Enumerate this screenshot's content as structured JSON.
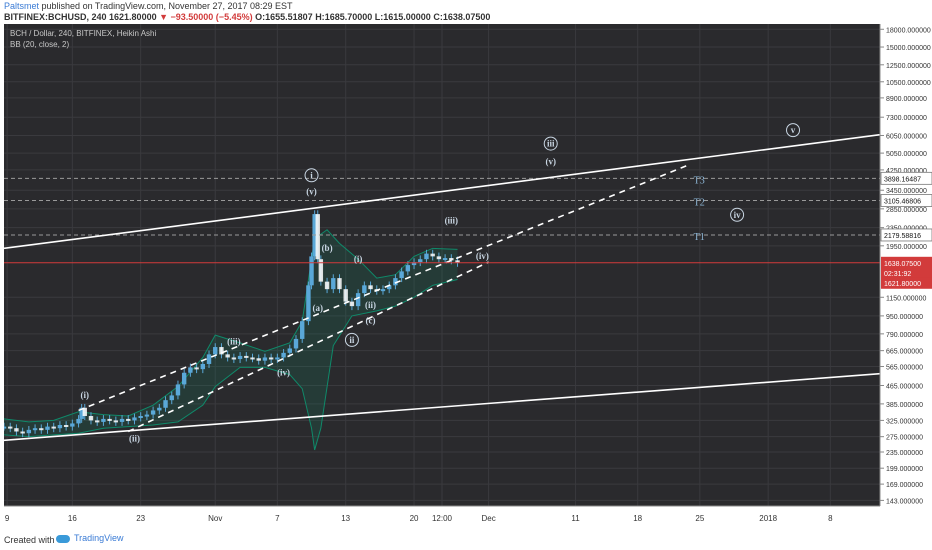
{
  "header": {
    "username": "Paltsmet",
    "published_text": "published on TradingView.com, November 27, 2017 08:29 EST",
    "symbol": "BITFINEX:BCHUSD, 240",
    "last": "1621.80000",
    "change": "▼ −93.50000 (−5.45%)",
    "o_label": "O:",
    "o": "1655.51807",
    "h_label": "H:",
    "h": "1685.70000",
    "l_label": "L:",
    "l": "1615.00000",
    "c_label": "C:",
    "c": "1638.07500"
  },
  "legend": {
    "series": "BCH / Dollar, 240, BITFINEX, Heikin Ashi",
    "indicator": "BB (20, close, 2)"
  },
  "footer": {
    "created": "Created with",
    "brand": "TradingView"
  },
  "colors": {
    "background": "#2a2a2d",
    "grid": "#3a3a3e",
    "candle": "#5aa8d8",
    "bollinger": "#0f8a6a",
    "annotation": "#c9d6e3",
    "target": "#8fb8d8",
    "price_line": "#d23b3b"
  },
  "chart_data": {
    "type": "candlestick",
    "title": "BCH / Dollar, 240, BITFINEX, Heikin Ashi",
    "y_scale": "log",
    "ylim": [
      135,
      19000
    ],
    "y_ticks": [
      {
        "v": 18000,
        "label": "18000.000000"
      },
      {
        "v": 15000,
        "label": "15000.000000"
      },
      {
        "v": 12500,
        "label": "12500.000000"
      },
      {
        "v": 10500,
        "label": "10500.000000"
      },
      {
        "v": 8900,
        "label": "8900.000000"
      },
      {
        "v": 7300,
        "label": "7300.000000"
      },
      {
        "v": 6050,
        "label": "6050.000000"
      },
      {
        "v": 5050,
        "label": "5050.000000"
      },
      {
        "v": 4250,
        "label": "4250.000000"
      },
      {
        "v": 3450,
        "label": "3450.000000"
      },
      {
        "v": 2850,
        "label": "2850.000000"
      },
      {
        "v": 2350,
        "label": "2350.000000"
      },
      {
        "v": 1950,
        "label": "1950.000000"
      },
      {
        "v": 1150,
        "label": "1150.000000"
      },
      {
        "v": 950,
        "label": "950.000000"
      },
      {
        "v": 790,
        "label": "790.000000"
      },
      {
        "v": 665,
        "label": "665.000000"
      },
      {
        "v": 565,
        "label": "565.000000"
      },
      {
        "v": 465,
        "label": "465.000000"
      },
      {
        "v": 385,
        "label": "385.000000"
      },
      {
        "v": 325,
        "label": "325.000000"
      },
      {
        "v": 275,
        "label": "275.000000"
      },
      {
        "v": 235,
        "label": "235.000000"
      },
      {
        "v": 199,
        "label": "199.000000"
      },
      {
        "v": 169,
        "label": "169.000000"
      },
      {
        "v": 143,
        "label": "143.000000"
      }
    ],
    "x_ticks": [
      {
        "t": 0.5,
        "label": "9"
      },
      {
        "t": 11,
        "label": "16"
      },
      {
        "t": 22,
        "label": "23"
      },
      {
        "t": 34,
        "label": "Nov"
      },
      {
        "t": 44,
        "label": "7"
      },
      {
        "t": 55,
        "label": "13"
      },
      {
        "t": 66,
        "label": "20"
      },
      {
        "t": 70.5,
        "label": "12:00"
      },
      {
        "t": 78,
        "label": "Dec"
      },
      {
        "t": 92,
        "label": "11"
      },
      {
        "t": 102,
        "label": "18"
      },
      {
        "t": 112,
        "label": "25"
      },
      {
        "t": 123,
        "label": "2018"
      },
      {
        "t": 133,
        "label": "8"
      }
    ],
    "x_range": [
      0,
      141
    ],
    "last_bar_t": 73,
    "series": [
      {
        "name": "BCH / Dollar",
        "key": "price",
        "values": [
          [
            0,
            305
          ],
          [
            1,
            300
          ],
          [
            2,
            290
          ],
          [
            3,
            285
          ],
          [
            4,
            295
          ],
          [
            5,
            300
          ],
          [
            6,
            295
          ],
          [
            7,
            305
          ],
          [
            8,
            300
          ],
          [
            9,
            310
          ],
          [
            10,
            305
          ],
          [
            11,
            315
          ],
          [
            12,
            330
          ],
          [
            12.5,
            370
          ],
          [
            13,
            340
          ],
          [
            14,
            325
          ],
          [
            15,
            320
          ],
          [
            16,
            330
          ],
          [
            17,
            325
          ],
          [
            18,
            320
          ],
          [
            19,
            330
          ],
          [
            20,
            325
          ],
          [
            21,
            335
          ],
          [
            22,
            340
          ],
          [
            23,
            345
          ],
          [
            24,
            360
          ],
          [
            25,
            370
          ],
          [
            26,
            400
          ],
          [
            27,
            420
          ],
          [
            28,
            470
          ],
          [
            29,
            530
          ],
          [
            30,
            560
          ],
          [
            31,
            550
          ],
          [
            32,
            580
          ],
          [
            33,
            640
          ],
          [
            34,
            690
          ],
          [
            35,
            640
          ],
          [
            36,
            620
          ],
          [
            37,
            610
          ],
          [
            38,
            630
          ],
          [
            39,
            620
          ],
          [
            40,
            615
          ],
          [
            41,
            600
          ],
          [
            42,
            620
          ],
          [
            43,
            610
          ],
          [
            44,
            620
          ],
          [
            45,
            650
          ],
          [
            46,
            680
          ],
          [
            47,
            750
          ],
          [
            48,
            900
          ],
          [
            49,
            1300
          ],
          [
            49.5,
            1750
          ],
          [
            50,
            2700
          ],
          [
            50.5,
            1700
          ],
          [
            51,
            1350
          ],
          [
            52,
            1250
          ],
          [
            53,
            1400
          ],
          [
            54,
            1250
          ],
          [
            55,
            1100
          ],
          [
            56,
            1050
          ],
          [
            57,
            1200
          ],
          [
            58,
            1300
          ],
          [
            59,
            1250
          ],
          [
            60,
            1230
          ],
          [
            61,
            1250
          ],
          [
            62,
            1300
          ],
          [
            63,
            1400
          ],
          [
            64,
            1500
          ],
          [
            65,
            1600
          ],
          [
            66,
            1650
          ],
          [
            67,
            1700
          ],
          [
            68,
            1800
          ],
          [
            69,
            1750
          ],
          [
            70,
            1700
          ],
          [
            71,
            1720
          ],
          [
            72,
            1680
          ],
          [
            73,
            1638
          ]
        ]
      },
      {
        "name": "BB (20, close, 2)",
        "key": "bb_upper",
        "values": [
          [
            0,
            330
          ],
          [
            4,
            320
          ],
          [
            8,
            325
          ],
          [
            12,
            355
          ],
          [
            16,
            345
          ],
          [
            20,
            340
          ],
          [
            24,
            380
          ],
          [
            28,
            460
          ],
          [
            32,
            620
          ],
          [
            34,
            780
          ],
          [
            38,
            720
          ],
          [
            42,
            660
          ],
          [
            46,
            720
          ],
          [
            48,
            900
          ],
          [
            50,
            2100
          ],
          [
            52,
            2300
          ],
          [
            54,
            2000
          ],
          [
            57,
            1700
          ],
          [
            60,
            1400
          ],
          [
            63,
            1450
          ],
          [
            66,
            1750
          ],
          [
            69,
            1900
          ],
          [
            73,
            1880
          ]
        ]
      },
      {
        "name": "BB (20, close, 2)",
        "key": "bb_lower",
        "values": [
          [
            0,
            280
          ],
          [
            4,
            275
          ],
          [
            8,
            280
          ],
          [
            12,
            285
          ],
          [
            16,
            300
          ],
          [
            20,
            305
          ],
          [
            24,
            310
          ],
          [
            28,
            320
          ],
          [
            32,
            380
          ],
          [
            34,
            460
          ],
          [
            38,
            560
          ],
          [
            42,
            560
          ],
          [
            46,
            520
          ],
          [
            48,
            450
          ],
          [
            49.5,
            300
          ],
          [
            50,
            240
          ],
          [
            51,
            300
          ],
          [
            53,
            700
          ],
          [
            56,
            950
          ],
          [
            60,
            1000
          ],
          [
            63,
            1050
          ],
          [
            66,
            1150
          ],
          [
            69,
            1300
          ],
          [
            73,
            1380
          ]
        ]
      }
    ],
    "trendlines": [
      {
        "key": "upper_channel",
        "p1": [
          0,
          1900
        ],
        "p2": [
          141,
          6100
        ],
        "style": "solid"
      },
      {
        "key": "lower_channel",
        "p1": [
          0,
          265
        ],
        "p2": [
          141,
          525
        ],
        "style": "solid"
      },
      {
        "key": "wave_upper",
        "p1": [
          12,
          360
        ],
        "p2": [
          110,
          4450
        ],
        "style": "dashed"
      },
      {
        "key": "wave_lower",
        "p1": [
          20,
          290
        ],
        "p2": [
          78,
          1650
        ],
        "style": "dashed"
      }
    ],
    "levels": [
      {
        "key": "T3",
        "label": "T3",
        "value": 3898.16487,
        "price_label": "3898.16487",
        "style": "dashed"
      },
      {
        "key": "T2",
        "label": "T2",
        "value": 3105.46806,
        "price_label": "3105.46806",
        "style": "dashed"
      },
      {
        "key": "T1",
        "label": "T1",
        "value": 2179.58816,
        "price_label": "2179.58816",
        "style": "dashed"
      }
    ],
    "price_line": {
      "value": 1638.075,
      "label": "1638.07500",
      "countdown": "02:31:92"
    },
    "current_price_label": "1621.80000",
    "level_text_t": 111,
    "annotations": [
      {
        "label": "(i)",
        "t": 13,
        "y": 410
      },
      {
        "label": "(ii)",
        "t": 21,
        "y": 262
      },
      {
        "label": "(iii)",
        "t": 37,
        "y": 710
      },
      {
        "label": "(iv)",
        "t": 45,
        "y": 515
      },
      {
        "label": "(v)",
        "t": 49.5,
        "y": 3300
      },
      {
        "label": "i",
        "t": 49.5,
        "y": 3900,
        "circle": true
      },
      {
        "label": "(a)",
        "t": 50.5,
        "y": 1000
      },
      {
        "label": "(b)",
        "t": 52,
        "y": 1850
      },
      {
        "label": "(c)",
        "t": 59,
        "y": 880
      },
      {
        "label": "ii",
        "t": 56,
        "y": 720,
        "circle": true
      },
      {
        "label": "(i)",
        "t": 57,
        "y": 1650
      },
      {
        "label": "(ii)",
        "t": 59,
        "y": 1030
      },
      {
        "label": "(iii)",
        "t": 72,
        "y": 2450
      },
      {
        "label": "(iv)",
        "t": 77,
        "y": 1700
      },
      {
        "label": "(v)",
        "t": 88,
        "y": 4500
      },
      {
        "label": "iii",
        "t": 88,
        "y": 5400,
        "circle": true
      },
      {
        "label": "iv",
        "t": 118,
        "y": 2600,
        "circle": true
      },
      {
        "label": "v",
        "t": 127,
        "y": 6200,
        "circle": true
      }
    ]
  }
}
